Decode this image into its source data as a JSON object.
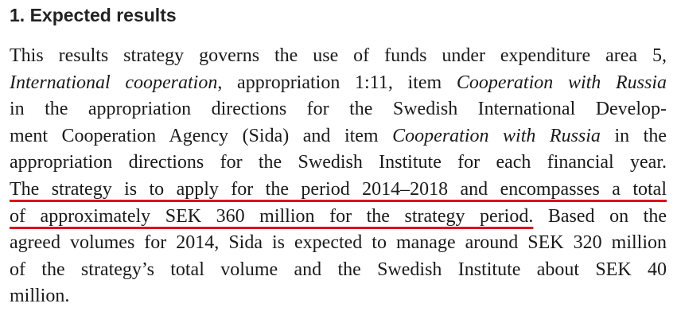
{
  "heading": "1. Expected results",
  "paragraph": {
    "lines": [
      [
        "This results strategy governs the use of funds under expenditure area 5,"
      ],
      [
        "International cooperation",
        ", appropriation 1:11, item ",
        "Cooperation with Russia"
      ],
      [
        "in the appropriation directions for the Swedish International Develop-"
      ],
      [
        "ment Cooperation Agency (Sida) and item ",
        "Cooperation with Russia",
        " in the"
      ],
      [
        "appropriation directions for the Swedish Institute for each financial year."
      ],
      [
        "The strategy is to apply for the period 2014–2018 and encompasses a total"
      ],
      [
        "of approximately SEK 360 million for the strategy period.",
        " Based on the"
      ],
      [
        "agreed volumes for 2014, Sida is expected to manage around SEK 320 million"
      ],
      [
        "of the strategy’s total volume and the Swedish Institute about SEK 40"
      ],
      [
        "million."
      ]
    ]
  }
}
